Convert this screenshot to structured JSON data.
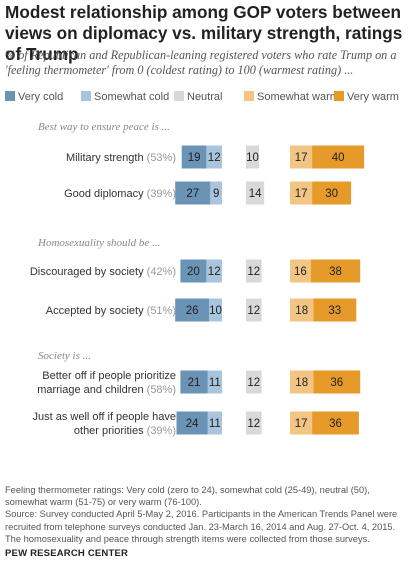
{
  "title": "Modest relationship among GOP voters between views on diplomacy vs. military strength, ratings of Trump",
  "subtitle": "% of Republican and Republican-leaning registered voters who rate Trump on a 'feeling thermometer' from 0 (coldest rating) to 100 (warmest rating) ...",
  "legend": [
    {
      "label": "Very cold",
      "color": "#6b93b5"
    },
    {
      "label": "Somewhat cold",
      "color": "#a9c5dd"
    },
    {
      "label": "Neutral",
      "color": "#d9d9d9"
    },
    {
      "label": "Somewhat warm",
      "color": "#f2c584"
    },
    {
      "label": "Very warm",
      "color": "#e69a2a"
    }
  ],
  "chart_data": {
    "type": "bar",
    "orientation": "horizontal-diverging",
    "series_names": [
      "Very cold",
      "Somewhat cold",
      "Neutral",
      "Somewhat warm",
      "Very warm"
    ],
    "groups": [
      {
        "heading": "Best way to ensure peace is ...",
        "rows": [
          {
            "label": [
              "Military strength (53%)"
            ],
            "values": [
              19,
              12,
              10,
              17,
              40
            ]
          },
          {
            "label": [
              "Good diplomacy (39%)"
            ],
            "values": [
              27,
              9,
              14,
              17,
              30
            ]
          }
        ]
      },
      {
        "heading": "Homosexuality should be ...",
        "rows": [
          {
            "label": [
              "Discouraged by society (42%)"
            ],
            "values": [
              20,
              12,
              12,
              16,
              38
            ]
          },
          {
            "label": [
              "Accepted by society (51%)"
            ],
            "values": [
              26,
              10,
              12,
              18,
              33
            ]
          }
        ]
      },
      {
        "heading": "Society is ...",
        "rows": [
          {
            "label": [
              "Better off if people prioritize",
              "marriage and children (58%)"
            ],
            "values": [
              21,
              11,
              12,
              18,
              36
            ]
          },
          {
            "label": [
              "Just as well off if people have",
              "other priorities (39%)"
            ],
            "values": [
              24,
              11,
              12,
              17,
              36
            ]
          }
        ]
      }
    ]
  },
  "notes": "Feeling thermometer ratings: Very cold (zero to 24), somewhat cold (25-49), neutral (50), somewhat warm (51-75) or very warm (76-100).\nSource: Survey conducted April 5-May 2, 2016. Participants in the American Trends Panel were recruited from telephone surveys conducted Jan. 23-March 16, 2014 and Aug. 27-Oct. 4, 2015. The homosexuality and peace through strength items were collected from those surveys.",
  "source_org": "PEW RESEARCH CENTER"
}
